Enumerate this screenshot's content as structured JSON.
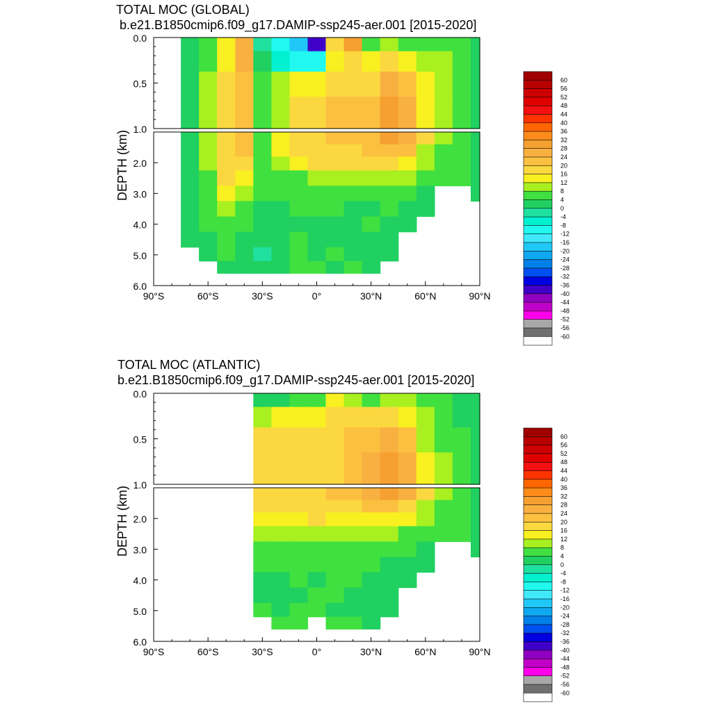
{
  "colorbar": {
    "labels": [
      "60",
      "56",
      "52",
      "48",
      "44",
      "40",
      "36",
      "32",
      "28",
      "24",
      "20",
      "16",
      "12",
      "8",
      "4",
      "0",
      "-4",
      "-8",
      "-12",
      "-16",
      "-20",
      "-24",
      "-28",
      "-32",
      "-36",
      "-40",
      "-44",
      "-48",
      "-52",
      "-56",
      "-60"
    ],
    "colors": [
      "#a00000",
      "#b80000",
      "#cc0000",
      "#e00000",
      "#f41010",
      "#ff3300",
      "#ff6600",
      "#ff8c1a",
      "#f5a030",
      "#f8b040",
      "#fcc040",
      "#fcd840",
      "#f8f020",
      "#a8f020",
      "#40e040",
      "#20d060",
      "#20e0a0",
      "#00f0d0",
      "#20f8f0",
      "#40e8f8",
      "#20c8f8",
      "#10a8f0",
      "#0080e8",
      "#0050f0",
      "#0000e0",
      "#4000c8",
      "#9000c0",
      "#c000c8",
      "#ff00e8",
      "#a8a8a8",
      "#707070",
      "#ffffff"
    ],
    "series_name": "",
    "units": ""
  },
  "chart_data": [
    {
      "type": "heatmap",
      "title": "TOTAL MOC (GLOBAL)",
      "subtitle": "b.e21.B1850cmip6.f09_g17.DAMIP-ssp245-aer.001 [2015-2020]",
      "xlabel": "",
      "ylabel": "DEPTH (km)",
      "xlim": [
        -90,
        90
      ],
      "ylim": [
        6.0,
        0.0
      ],
      "x_ticks": [
        "90°S",
        "60°S",
        "30°S",
        "0°",
        "30°N",
        "60°N",
        "90°N"
      ],
      "y_ticks_upper": [
        "0.0",
        "0.5",
        "1.0"
      ],
      "y_ticks_lower": [
        "2.0",
        "3.0",
        "4.0",
        "5.0",
        "6.0"
      ],
      "upper_panel_depth_range_km": [
        0.0,
        1.0
      ],
      "lower_panel_depth_range_km": [
        1.0,
        6.0
      ],
      "contour_interval": 4,
      "x": [
        -90,
        -80,
        -70,
        -60,
        -50,
        -40,
        -30,
        -20,
        -10,
        0,
        10,
        20,
        30,
        40,
        50,
        60,
        70,
        80,
        90
      ],
      "depth_km": [
        0.05,
        0.25,
        0.5,
        0.8,
        1.2,
        1.6,
        2.0,
        2.5,
        3.0,
        3.5,
        4.0,
        4.5,
        5.0,
        5.4
      ],
      "values": [
        [
          null,
          null,
          -2,
          2,
          10,
          22,
          -4,
          -12,
          -20,
          -40,
          14,
          26,
          2,
          6,
          2,
          2,
          4,
          2,
          0
        ],
        [
          null,
          null,
          -1,
          4,
          12,
          24,
          -2,
          -8,
          -14,
          -12,
          12,
          14,
          10,
          14,
          10,
          8,
          6,
          2,
          0
        ],
        [
          null,
          null,
          0,
          6,
          14,
          20,
          2,
          6,
          10,
          12,
          14,
          14,
          16,
          22,
          20,
          10,
          8,
          4,
          0
        ],
        [
          null,
          null,
          0,
          6,
          16,
          20,
          4,
          8,
          14,
          16,
          18,
          18,
          20,
          28,
          24,
          12,
          8,
          4,
          0
        ],
        [
          null,
          null,
          0,
          6,
          16,
          20,
          4,
          10,
          16,
          16,
          18,
          18,
          20,
          26,
          22,
          14,
          6,
          2,
          0
        ],
        [
          null,
          null,
          0,
          6,
          16,
          18,
          4,
          10,
          14,
          14,
          16,
          16,
          18,
          20,
          18,
          8,
          4,
          2,
          0
        ],
        [
          null,
          null,
          0,
          6,
          16,
          16,
          4,
          8,
          10,
          14,
          14,
          14,
          14,
          14,
          12,
          6,
          4,
          2,
          0
        ],
        [
          null,
          null,
          0,
          4,
          14,
          12,
          2,
          4,
          4,
          6,
          6,
          6,
          8,
          8,
          6,
          4,
          2,
          2,
          0
        ],
        [
          null,
          null,
          0,
          4,
          12,
          8,
          2,
          2,
          2,
          4,
          4,
          4,
          4,
          4,
          2,
          0,
          null,
          null,
          0
        ],
        [
          null,
          null,
          0,
          2,
          8,
          2,
          -2,
          -2,
          2,
          2,
          2,
          0,
          0,
          2,
          0,
          0,
          null,
          null,
          null
        ],
        [
          null,
          null,
          0,
          2,
          4,
          2,
          -2,
          -2,
          0,
          -2,
          0,
          -2,
          2,
          0,
          0,
          null,
          null,
          null,
          null
        ],
        [
          null,
          null,
          0,
          0,
          2,
          0,
          -2,
          -2,
          2,
          -2,
          0,
          -2,
          0,
          0,
          null,
          null,
          null,
          null,
          null
        ],
        [
          null,
          null,
          null,
          -2,
          2,
          0,
          -4,
          -2,
          2,
          -2,
          2,
          0,
          -2,
          0,
          null,
          null,
          null,
          null,
          null
        ],
        [
          null,
          null,
          null,
          null,
          -2,
          -2,
          -2,
          -2,
          2,
          2,
          -2,
          2,
          0,
          null,
          null,
          null,
          null,
          null,
          null
        ]
      ]
    },
    {
      "type": "heatmap",
      "title": "TOTAL MOC (ATLANTIC)",
      "subtitle": "b.e21.B1850cmip6.f09_g17.DAMIP-ssp245-aer.001 [2015-2020]",
      "xlabel": "",
      "ylabel": "DEPTH (km)",
      "xlim": [
        -90,
        90
      ],
      "ylim": [
        6.0,
        0.0
      ],
      "x_ticks": [
        "90°S",
        "60°S",
        "30°S",
        "0°",
        "30°N",
        "60°N",
        "90°N"
      ],
      "y_ticks_upper": [
        "0.0",
        "0.5",
        "1.0"
      ],
      "y_ticks_lower": [
        "2.0",
        "3.0",
        "4.0",
        "5.0",
        "6.0"
      ],
      "upper_panel_depth_range_km": [
        0.0,
        1.0
      ],
      "lower_panel_depth_range_km": [
        1.0,
        6.0
      ],
      "contour_interval": 4,
      "x": [
        -90,
        -80,
        -70,
        -60,
        -50,
        -40,
        -30,
        -20,
        -10,
        0,
        10,
        20,
        30,
        40,
        50,
        60,
        70,
        80,
        90
      ],
      "depth_km": [
        0.05,
        0.25,
        0.5,
        0.8,
        1.2,
        1.6,
        2.0,
        2.5,
        3.0,
        3.5,
        4.0,
        4.5,
        5.0,
        5.4
      ],
      "values": [
        [
          null,
          null,
          null,
          null,
          null,
          null,
          -2,
          -2,
          2,
          4,
          10,
          6,
          4,
          8,
          6,
          4,
          2,
          0,
          0
        ],
        [
          null,
          null,
          null,
          null,
          null,
          null,
          8,
          10,
          12,
          12,
          14,
          14,
          14,
          16,
          12,
          6,
          4,
          0,
          0
        ],
        [
          null,
          null,
          null,
          null,
          null,
          null,
          14,
          16,
          16,
          16,
          16,
          18,
          18,
          22,
          20,
          8,
          4,
          2,
          0
        ],
        [
          null,
          null,
          null,
          null,
          null,
          null,
          16,
          16,
          16,
          16,
          16,
          18,
          22,
          28,
          24,
          12,
          6,
          2,
          0
        ],
        [
          null,
          null,
          null,
          null,
          null,
          null,
          16,
          16,
          16,
          16,
          18,
          18,
          22,
          26,
          22,
          14,
          6,
          2,
          0
        ],
        [
          null,
          null,
          null,
          null,
          null,
          null,
          14,
          14,
          14,
          16,
          16,
          16,
          18,
          20,
          16,
          8,
          4,
          2,
          0
        ],
        [
          null,
          null,
          null,
          null,
          null,
          null,
          12,
          12,
          12,
          14,
          12,
          12,
          12,
          12,
          10,
          6,
          4,
          2,
          0
        ],
        [
          null,
          null,
          null,
          null,
          null,
          null,
          8,
          8,
          8,
          8,
          8,
          8,
          8,
          8,
          4,
          4,
          2,
          2,
          0
        ],
        [
          null,
          null,
          null,
          null,
          null,
          null,
          4,
          4,
          4,
          4,
          4,
          4,
          4,
          2,
          2,
          0,
          null,
          null,
          0
        ],
        [
          null,
          null,
          null,
          null,
          null,
          null,
          2,
          2,
          2,
          2,
          2,
          2,
          2,
          0,
          0,
          0,
          null,
          null,
          null
        ],
        [
          null,
          null,
          null,
          null,
          null,
          null,
          -2,
          -2,
          2,
          0,
          2,
          2,
          0,
          -2,
          -2,
          null,
          null,
          null,
          null
        ],
        [
          null,
          null,
          null,
          null,
          null,
          null,
          -2,
          -2,
          0,
          2,
          2,
          -2,
          -2,
          -2,
          null,
          null,
          null,
          null,
          null
        ],
        [
          null,
          null,
          null,
          null,
          null,
          null,
          2,
          -2,
          2,
          2,
          0,
          -2,
          -2,
          -2,
          null,
          null,
          null,
          null,
          null
        ],
        [
          null,
          null,
          null,
          null,
          null,
          null,
          null,
          2,
          2,
          null,
          2,
          2,
          0,
          null,
          null,
          null,
          null,
          null,
          null
        ]
      ]
    }
  ]
}
